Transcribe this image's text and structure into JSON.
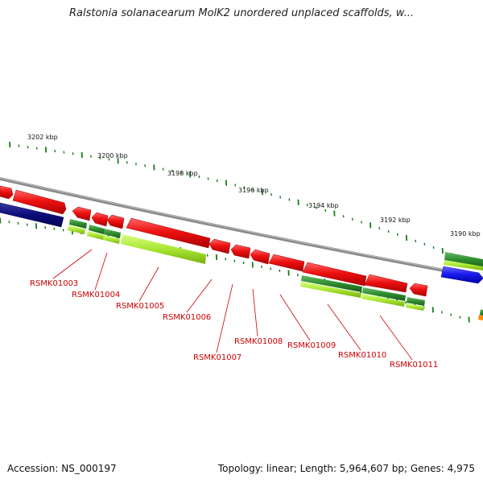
{
  "title": "Ralstonia solanacearum MolK2 unordered unplaced scaffolds, w...",
  "footer": {
    "accession": "Accession: NS_000197",
    "summary": "Topology: linear; Length: 5,964,607 bp; Genes: 4,975"
  },
  "colors": {
    "backbone": "#8a8a8a",
    "gene_forward": "#ee1111",
    "gene_blue": "#1a1aee",
    "gene_navy": "#0b0b7a",
    "feature_dark_green": "#2e8b2e",
    "feature_light_green": "#a8e632",
    "tick": "#1a7a1a",
    "label": "#cc0000",
    "orange": "#ff8800"
  },
  "scale": {
    "tick_labels": [
      "3202 kbp",
      "3200 kbp",
      "3198 kbp",
      "3196 kbp",
      "3194 kbp",
      "3192 kbp",
      "3190 kbp"
    ]
  },
  "gene_labels": [
    "RSMK01003",
    "RSMK01004",
    "RSMK01005",
    "RSMK01006",
    "RSMK01007",
    "RSMK01008",
    "RSMK01009",
    "RSMK01010",
    "RSMK01011"
  ]
}
